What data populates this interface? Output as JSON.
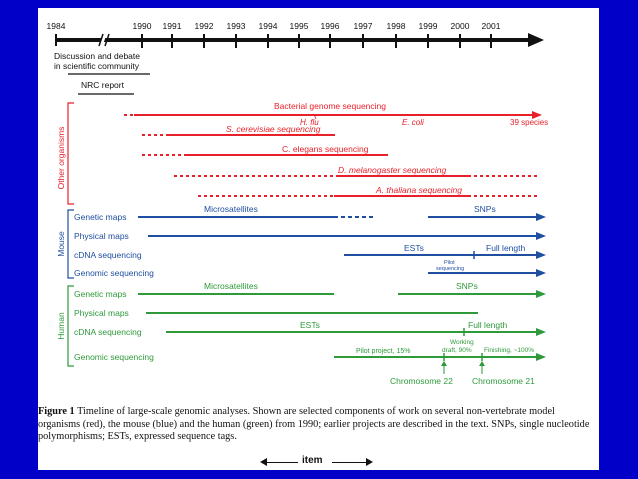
{
  "timeline_years": [
    "1984",
    "1990",
    "1991",
    "1992",
    "1993",
    "1994",
    "1995",
    "1996",
    "1997",
    "1998",
    "1999",
    "2000",
    "2001"
  ],
  "left_notes": {
    "discussion": [
      "Discussion and debate",
      "in scientific community"
    ],
    "nrc_report": "NRC report"
  },
  "sections": {
    "other": "Other organisms",
    "mouse": "Mouse",
    "human": "Human"
  },
  "row_labels": {
    "mouse": [
      "Genetic maps",
      "Physical maps",
      "cDNA sequencing",
      "Genomic sequencing"
    ],
    "human": [
      "Genetic maps",
      "Physical maps",
      "cDNA sequencing",
      "Genomic sequencing"
    ]
  },
  "bar_labels": {
    "bacterial": "Bacterial genome sequencing",
    "h_flu": "H. flu",
    "e_coli": "E. coli",
    "species39": "39 species",
    "cerevisiae": "S. cerevisiae sequencing",
    "elegans": "C. elegans sequencing",
    "melanogaster": "D. melanogaster sequencing",
    "thaliana": "A. thaliana sequencing",
    "mouse_micro": "Microsatellites",
    "mouse_snps": "SNPs",
    "mouse_ests": "ESTs",
    "mouse_full": "Full length",
    "mouse_pilot": [
      "Pilot",
      "sequencing"
    ],
    "human_micro": "Microsatellites",
    "human_snps": "SNPs",
    "human_ests": "ESTs",
    "human_full": "Full length",
    "pilot15": "Pilot project, 15%",
    "working": [
      "Working",
      "draft, 90%"
    ],
    "finishing": "Finishing, ~100%",
    "chr22": "Chromosome 22",
    "chr21": "Chromosome 21"
  },
  "colors": {
    "other": "#e8202a",
    "mouse": "#1f4fa0",
    "human": "#2e9a3a",
    "axis": "#111111",
    "background": "#0000c8"
  },
  "caption": {
    "figure_label": "Figure 1",
    "text": " Timeline of large-scale genomic analyses. Shown are selected components of work on several non-vertebrate model organisms (red), the mouse (blue) and the human (green) from 1990; earlier projects are described in the text. SNPs, single nucleotide polymorphisms; ESTs, expressed sequence tags."
  },
  "nav": {
    "label": "item"
  }
}
